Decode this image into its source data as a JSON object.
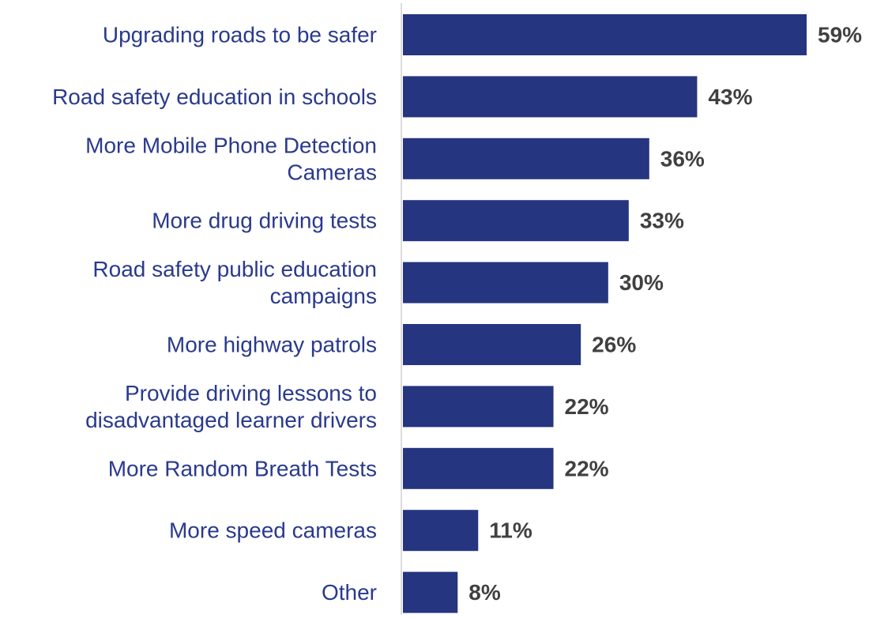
{
  "chart_data": {
    "type": "bar",
    "orientation": "horizontal",
    "categories": [
      [
        "Upgrading roads to be safer"
      ],
      [
        "Road safety education in schools"
      ],
      [
        "More Mobile Phone Detection",
        "Cameras"
      ],
      [
        "More drug driving tests"
      ],
      [
        "Road safety public education",
        "campaigns"
      ],
      [
        "More highway patrols"
      ],
      [
        "Provide driving lessons to",
        "disadvantaged learner drivers"
      ],
      [
        "More Random Breath Tests"
      ],
      [
        "More speed cameras"
      ],
      [
        "Other"
      ]
    ],
    "values": [
      59,
      43,
      36,
      33,
      30,
      26,
      22,
      22,
      11,
      8
    ],
    "value_labels": [
      "59%",
      "43%",
      "36%",
      "33%",
      "30%",
      "26%",
      "22%",
      "22%",
      "11%",
      "8%"
    ],
    "xlim": [
      0,
      60
    ],
    "grid": false,
    "legend": "none",
    "colors": {
      "bar": "#26357f",
      "category_text": "#2a3a8c",
      "value_text": "#404040",
      "axis": "#d0d0d0"
    }
  }
}
